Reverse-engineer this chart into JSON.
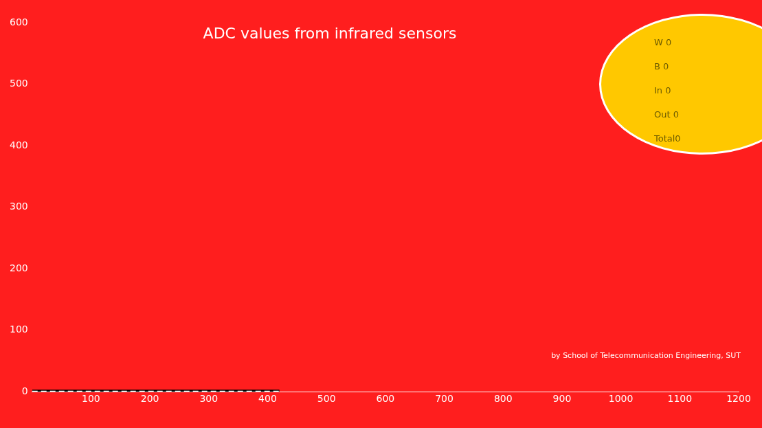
{
  "chart_data": {
    "type": "line",
    "title": "ADC values from infrared sensors",
    "x": [
      0,
      420
    ],
    "series": [
      {
        "color": "#000000",
        "values": [
          0,
          0
        ],
        "line_style": "solid"
      },
      {
        "color": "#ffffff",
        "values": [
          0,
          0
        ],
        "line_style": "dashed"
      }
    ],
    "xlim": [
      0,
      1200
    ],
    "xticks": [
      100,
      200,
      300,
      400,
      500,
      600,
      700,
      800,
      900,
      1000,
      1100,
      1200
    ],
    "ylim": [
      0,
      600
    ],
    "yticks": [
      0,
      100,
      200,
      300,
      400,
      500,
      600
    ],
    "grid": false,
    "legend": false,
    "marker": "none",
    "annotations": [
      "W 0",
      "B 0",
      "In 0",
      "Out 0",
      "Total0",
      "by School of Telecommunication Engineering, SUT"
    ]
  }
}
